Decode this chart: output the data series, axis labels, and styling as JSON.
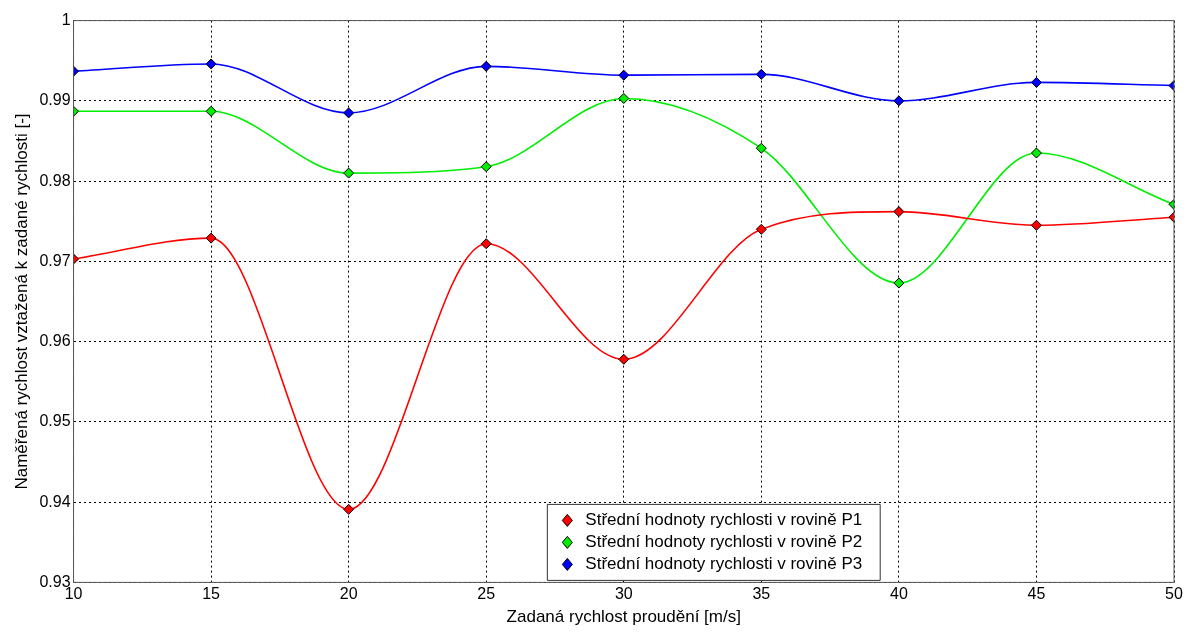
{
  "chart_data": {
    "type": "line",
    "xlabel": "Zadaná rychlost proudění [m/s]",
    "ylabel": "Naměřená rychlost vztažená k zadané rychlosti [-]",
    "x": [
      10,
      15,
      20,
      25,
      30,
      35,
      40,
      45,
      50
    ],
    "series": [
      {
        "name": "Střední hodnoty rychlosti v rovině P1",
        "color": "#ff0000",
        "values": [
          0.9703,
          0.9729,
          0.9391,
          0.9722,
          0.9578,
          0.974,
          0.9762,
          0.9745,
          0.9755
        ]
      },
      {
        "name": "Střední hodnoty rychlosti v rovině P2",
        "color": "#00ee00",
        "values": [
          0.9887,
          0.9887,
          0.981,
          0.9818,
          0.9903,
          0.9841,
          0.9673,
          0.9835,
          0.9771
        ]
      },
      {
        "name": "Střední hodnoty rychlosti v rovině P3",
        "color": "#0000ff",
        "values": [
          0.9937,
          0.9946,
          0.9885,
          0.9943,
          0.9932,
          0.9933,
          0.99,
          0.9923,
          0.9919
        ]
      }
    ],
    "xlim": [
      10,
      50
    ],
    "xticks": [
      10,
      15,
      20,
      25,
      30,
      35,
      40,
      45,
      50
    ],
    "ylim": [
      0.93,
      1
    ],
    "yticks": [
      0.93,
      0.94,
      0.95,
      0.96,
      0.97,
      0.98,
      0.99,
      1
    ],
    "grid": true,
    "legend": "bottom",
    "marker": "diamond",
    "line_style": "solid"
  }
}
